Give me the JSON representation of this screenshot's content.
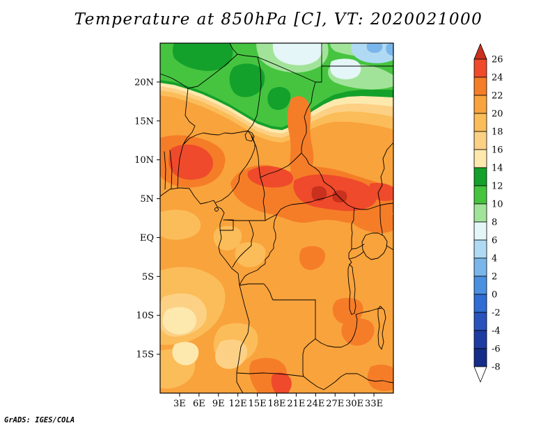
{
  "title": "Temperature at 850hPa [C], VT: 2020021000",
  "credit": "GrADS: IGES/COLA",
  "chart_data": {
    "type": "heatmap",
    "title": "Temperature at 850hPa [C], VT: 2020021000",
    "variable": "Temperature",
    "level": "850hPa",
    "units": "C",
    "valid_time": "2020021000",
    "lon_axis": {
      "tick_labels": [
        "3E",
        "6E",
        "9E",
        "12E",
        "15E",
        "18E",
        "21E",
        "24E",
        "27E",
        "30E",
        "33E"
      ],
      "tick_values": [
        3,
        6,
        9,
        12,
        15,
        18,
        21,
        24,
        27,
        30,
        33
      ],
      "range_deg_east": [
        0,
        36
      ]
    },
    "lat_axis": {
      "tick_labels": [
        "20N",
        "15N",
        "10N",
        "5N",
        "EQ",
        "5S",
        "10S",
        "15S"
      ],
      "tick_values": [
        20,
        15,
        10,
        5,
        0,
        -5,
        -10,
        -15
      ],
      "range_deg_north": [
        -20,
        25
      ]
    },
    "palette": {
      "b26p": "#c9301d",
      "b24_26": "#ee4a2b",
      "b22_24": "#f57d28",
      "b20_22": "#f9a33c",
      "b18_20": "#fbbd59",
      "b16_18": "#fcd185",
      "b14_16": "#fde9ae",
      "b12_14": "#13a12b",
      "b10_12": "#46c440",
      "b8_10": "#a2e39a",
      "b6_8": "#e4f6f7",
      "b4_6": "#b0daf3",
      "b2_4": "#7ab6eb",
      "b0_2": "#4a8fe0",
      "bm2_0": "#2f6cd4",
      "bm4_m2": "#2853bc",
      "bm6_m4": "#1d3ca2",
      "bm8_m6": "#152c88",
      "bm8m": "#ffffff"
    },
    "colorbar": {
      "tick_values": [
        26,
        24,
        22,
        20,
        18,
        16,
        14,
        12,
        10,
        8,
        6,
        4,
        2,
        0,
        -2,
        -4,
        -6,
        -8
      ],
      "band_order_top_to_bottom": [
        "b26p",
        "b24_26",
        "b22_24",
        "b20_22",
        "b18_20",
        "b16_18",
        "b14_16",
        "b12_14",
        "b10_12",
        "b8_10",
        "b6_8",
        "b4_6",
        "b2_4",
        "b0_2",
        "bm2_0",
        "bm4_m2",
        "bm6_m4",
        "bm8_m6",
        "bm8m"
      ],
      "includes_arrow_ends": true
    },
    "features": [
      "Warm band of 22-26C stretching across 4N-9N from West Africa toward South Sudan",
      "Hottest red core (24-26C) centered near 21-29E, 5-8N",
      "Cool green region (8-14C) north of about 18N over the Sahara",
      "Coldest pale blue patches (2-8C) along the northern edge near 22-25N",
      "Pale yellow patches (14-18C) near the southwest coast between 10S and 17S",
      "Small hot spots (24-26C) near 17-19E south of 15S"
    ]
  }
}
